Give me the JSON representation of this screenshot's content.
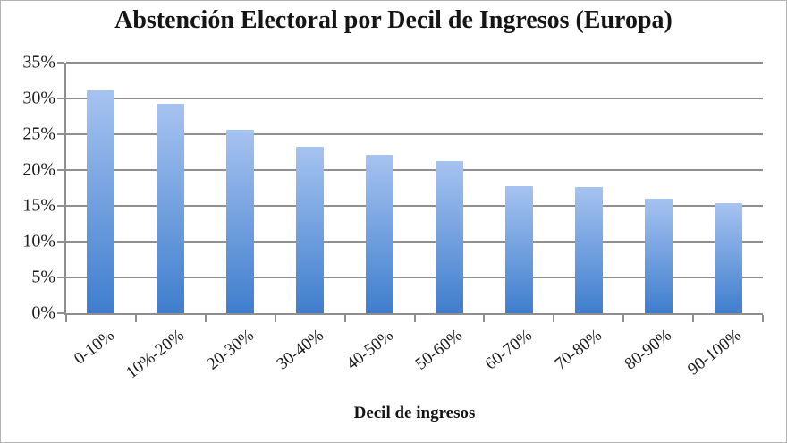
{
  "chart_data": {
    "type": "bar",
    "title": "Abstención Electoral por Decil de Ingresos (Europa)",
    "xlabel": "Decil de ingresos",
    "ylabel": "",
    "categories": [
      "0-10%",
      "10%-20%",
      "20-30%",
      "30-40%",
      "40-50%",
      "50-60%",
      "60-70%",
      "70-80%",
      "80-90%",
      "90-100%"
    ],
    "values": [
      31.1,
      29.3,
      25.6,
      23.2,
      22.1,
      21.2,
      17.8,
      17.6,
      16.0,
      15.4
    ],
    "ylim": [
      0,
      35
    ],
    "ytick_step": 5,
    "ytick_labels": [
      "0%",
      "5%",
      "10%",
      "15%",
      "20%",
      "25%",
      "30%",
      "35%"
    ],
    "grid": true,
    "legend_position": "none",
    "colors": {
      "bar_gradient_top": "#a6c3f0",
      "bar_gradient_bottom": "#3f7ecd",
      "gridline": "#8e8e8e",
      "axis": "#8e8e8e",
      "text": "#1c1c1c",
      "background": "#ffffff",
      "frame_border": "#b3b3b3"
    }
  }
}
